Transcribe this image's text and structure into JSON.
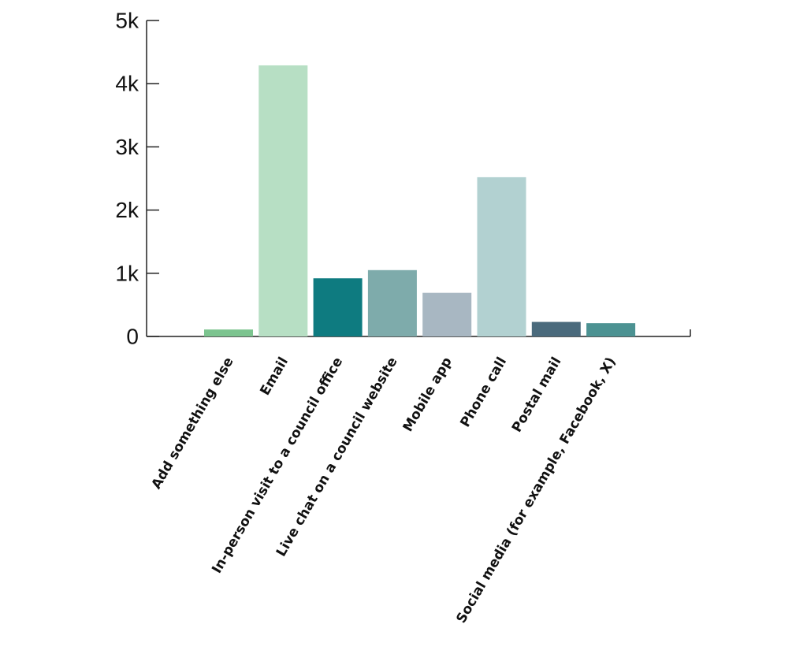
{
  "chart_data": {
    "type": "bar",
    "title": "",
    "xlabel": "",
    "ylabel": "",
    "categories": [
      "Add something else",
      "Email",
      "In-person visit to a council office",
      "Live chat on a council website",
      "Mobile app",
      "Phone call",
      "Postal mail",
      "Social media (for example, Facebook, X)"
    ],
    "values": [
      110,
      4290,
      920,
      1050,
      690,
      2520,
      230,
      210
    ],
    "colors": [
      "#7cc48f",
      "#b7dfc4",
      "#0e7b80",
      "#7eabab",
      "#a8b7c2",
      "#b2d1d1",
      "#4a6a7c",
      "#4c9292"
    ],
    "ylim": [
      0,
      5000
    ],
    "yticks": [
      0,
      1000,
      2000,
      3000,
      4000,
      5000
    ],
    "ytick_labels": [
      "0",
      "1k",
      "2k",
      "3k",
      "4k",
      "5k"
    ],
    "grid": false,
    "legend": "none"
  }
}
